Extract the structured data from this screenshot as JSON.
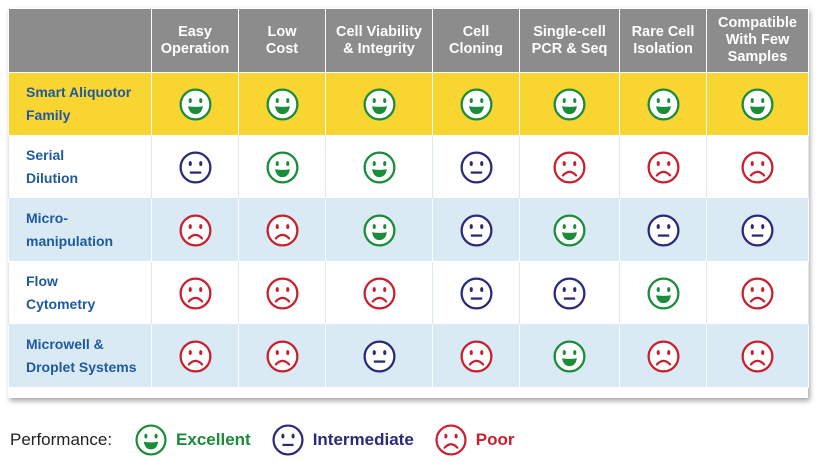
{
  "colors": {
    "excellent": "#1a8c3a",
    "intermediate": "#2b2a7a",
    "poor": "#c8202e",
    "header_bg": "#8c8c8c",
    "highlight_row": "#f9d532",
    "alt_row": "#d9eaf5",
    "row_label": "#1f5aa0"
  },
  "table": {
    "columns": [
      [
        "Easy",
        "Operation"
      ],
      [
        "Low",
        "Cost"
      ],
      [
        "Cell Viability",
        "& Integrity"
      ],
      [
        "Cell",
        "Cloning"
      ],
      [
        "Single-cell",
        "PCR & Seq"
      ],
      [
        "Rare Cell",
        "Isolation"
      ],
      [
        "Compatible",
        "With Few",
        "Samples"
      ]
    ],
    "rows": [
      {
        "label": [
          "Smart Aliquotor",
          "Family"
        ],
        "bg": "yellow",
        "ratings": [
          "excellent",
          "excellent",
          "excellent",
          "excellent",
          "excellent",
          "excellent",
          "excellent"
        ]
      },
      {
        "label": [
          "Serial",
          "Dilution"
        ],
        "bg": "white",
        "ratings": [
          "intermediate",
          "excellent",
          "excellent",
          "intermediate",
          "poor",
          "poor",
          "poor"
        ]
      },
      {
        "label": [
          "Micro-",
          "manipulation"
        ],
        "bg": "blue",
        "ratings": [
          "poor",
          "poor",
          "excellent",
          "intermediate",
          "excellent",
          "intermediate",
          "intermediate"
        ]
      },
      {
        "label": [
          "Flow",
          "Cytometry"
        ],
        "bg": "white",
        "ratings": [
          "poor",
          "poor",
          "poor",
          "intermediate",
          "intermediate",
          "excellent",
          "poor"
        ]
      },
      {
        "label": [
          "Microwell &",
          "Droplet Systems"
        ],
        "bg": "blue",
        "ratings": [
          "poor",
          "poor",
          "intermediate",
          "poor",
          "excellent",
          "poor",
          "poor"
        ]
      }
    ]
  },
  "legend": {
    "title": "Performance:",
    "items": [
      {
        "key": "excellent",
        "label": "Excellent",
        "icon": "happy-face-icon"
      },
      {
        "key": "intermediate",
        "label": "Intermediate",
        "icon": "neutral-face-icon"
      },
      {
        "key": "poor",
        "label": "Poor",
        "icon": "sad-face-icon"
      }
    ]
  }
}
